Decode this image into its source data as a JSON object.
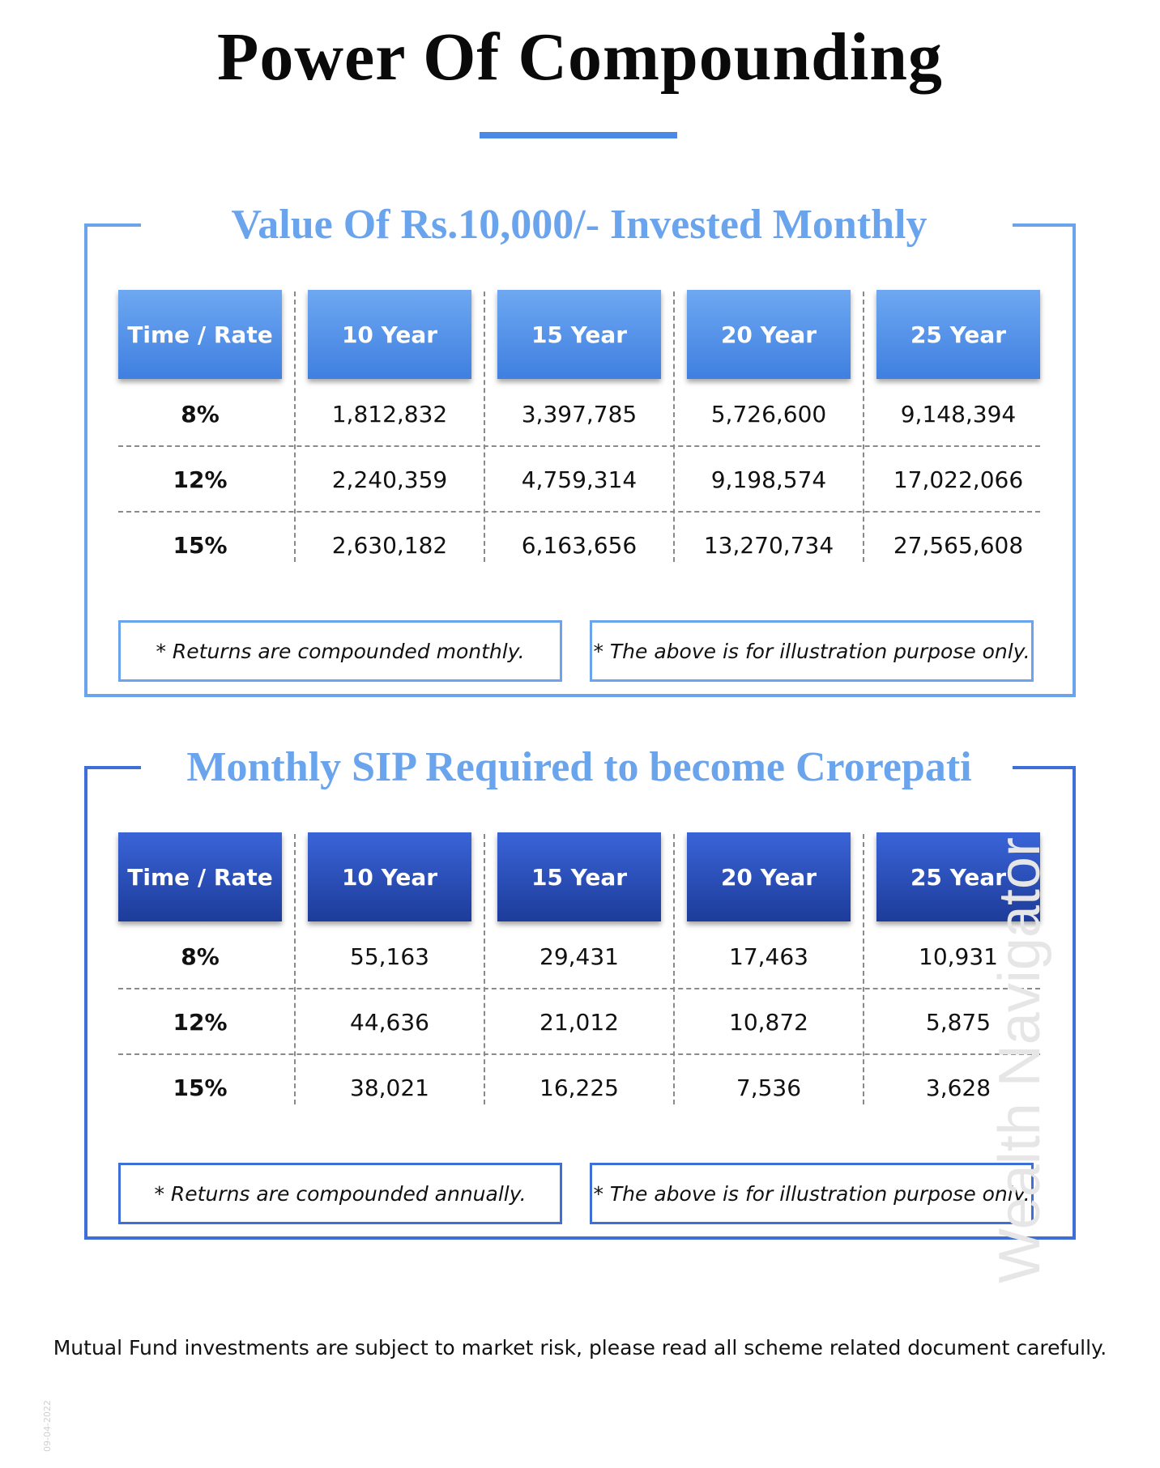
{
  "title": "Power Of Compounding",
  "columns": [
    "Time / Rate",
    "10 Year",
    "15 Year",
    "20 Year",
    "25 Year"
  ],
  "section1": {
    "heading": "Value Of Rs.10,000/- Invested Monthly",
    "rows": [
      {
        "rate": "8%",
        "values": [
          "1,812,832",
          "3,397,785",
          "5,726,600",
          "9,148,394"
        ]
      },
      {
        "rate": "12%",
        "values": [
          "2,240,359",
          "4,759,314",
          "9,198,574",
          "17,022,066"
        ]
      },
      {
        "rate": "15%",
        "values": [
          "2,630,182",
          "6,163,656",
          "13,270,734",
          "27,565,608"
        ]
      }
    ],
    "note_left": "* Returns are compounded monthly.",
    "note_right": "* The above is for illustration purpose only."
  },
  "section2": {
    "heading": "Monthly SIP Required to become Crorepati",
    "rows": [
      {
        "rate": "8%",
        "values": [
          "55,163",
          "29,431",
          "17,463",
          "10,931"
        ]
      },
      {
        "rate": "12%",
        "values": [
          "44,636",
          "21,012",
          "10,872",
          "5,875"
        ]
      },
      {
        "rate": "15%",
        "values": [
          "38,021",
          "16,225",
          "7,536",
          "3,628"
        ]
      }
    ],
    "note_left": "* Returns are compounded annually.",
    "note_right": "* The above is for illustration purpose only."
  },
  "disclaimer": "Mutual Fund investments are subject to market risk, please read all scheme related document carefully.",
  "watermark": "Wealth Navigator",
  "datestamp": "09-04-2022",
  "colors": {
    "accent_light": "#6aa4ec",
    "accent_dark": "#3d6fd6",
    "header_light": "#4f8ee8",
    "header_dark": "#2547b0"
  }
}
